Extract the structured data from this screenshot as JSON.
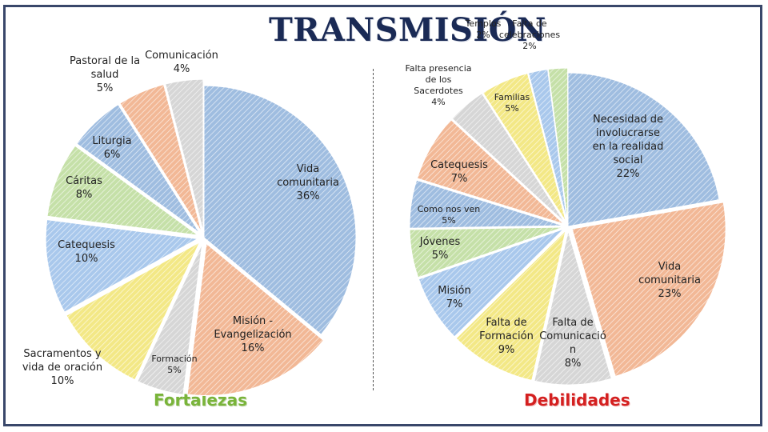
{
  "title": "TRANSMISIÓN",
  "colors": {
    "blue": "#9fbde0",
    "orange": "#f2b896",
    "gray": "#d6d6d6",
    "yellow": "#f3e886",
    "lightblue": "#a9c8ec",
    "green": "#c5e0a8",
    "green2": "#c9e3b3",
    "navy": "#3d5a8a",
    "border": "#39476a"
  },
  "chart_data": [
    {
      "type": "pie",
      "title": "Fortalezas",
      "slices": [
        {
          "label": "Vida comunitaria",
          "value": 36,
          "pct": "36%",
          "color": "#9fbde0"
        },
        {
          "label": "Misión - Evangelización",
          "value": 16,
          "pct": "16%",
          "color": "#f2b896"
        },
        {
          "label": "Formación",
          "value": 5,
          "pct": "5%",
          "color": "#d6d6d6"
        },
        {
          "label": "Sacramentos y vida de oración",
          "value": 10,
          "pct": "10%",
          "color": "#f3e886"
        },
        {
          "label": "Catequesis",
          "value": 10,
          "pct": "10%",
          "color": "#a9c8ec"
        },
        {
          "label": "Cáritas",
          "value": 8,
          "pct": "8%",
          "color": "#c5e0a8"
        },
        {
          "label": "Liturgia",
          "value": 6,
          "pct": "6%",
          "color": "#9fbde0"
        },
        {
          "label": "Pastoral de la salud",
          "value": 5,
          "pct": "5%",
          "color": "#f2b896"
        },
        {
          "label": "Comunicación",
          "value": 4,
          "pct": "4%",
          "color": "#d6d6d6"
        }
      ]
    },
    {
      "type": "pie",
      "title": "Debilidades",
      "slices": [
        {
          "label": "Necesidad de involucrarse en la realidad social",
          "value": 22,
          "pct": "22%",
          "color": "#9fbde0"
        },
        {
          "label": "Vida comunitaria",
          "value": 23,
          "pct": "23%",
          "color": "#f2b896"
        },
        {
          "label": "Falta de Comunicación",
          "value": 8,
          "pct": "8%",
          "color": "#d6d6d6"
        },
        {
          "label": "Falta de Formación",
          "value": 9,
          "pct": "9%",
          "color": "#f3e886"
        },
        {
          "label": "Misión",
          "value": 7,
          "pct": "7%",
          "color": "#a9c8ec"
        },
        {
          "label": "Jóvenes",
          "value": 5,
          "pct": "5%",
          "color": "#c5e0a8"
        },
        {
          "label": "Como nos ven",
          "value": 5,
          "pct": "5%",
          "color": "#9fbde0"
        },
        {
          "label": "Catequesis",
          "value": 7,
          "pct": "7%",
          "color": "#f2b896"
        },
        {
          "label": "Falta presencia de los Sacerdotes",
          "value": 4,
          "pct": "4%",
          "color": "#d6d6d6"
        },
        {
          "label": "Familias",
          "value": 5,
          "pct": "5%",
          "color": "#f3e886"
        },
        {
          "label": "Templos",
          "value": 2,
          "pct": "2%",
          "color": "#a9c8ec"
        },
        {
          "label": "Falta de celebraciones",
          "value": 2,
          "pct": "2%",
          "color": "#c5e0a8"
        }
      ]
    }
  ]
}
